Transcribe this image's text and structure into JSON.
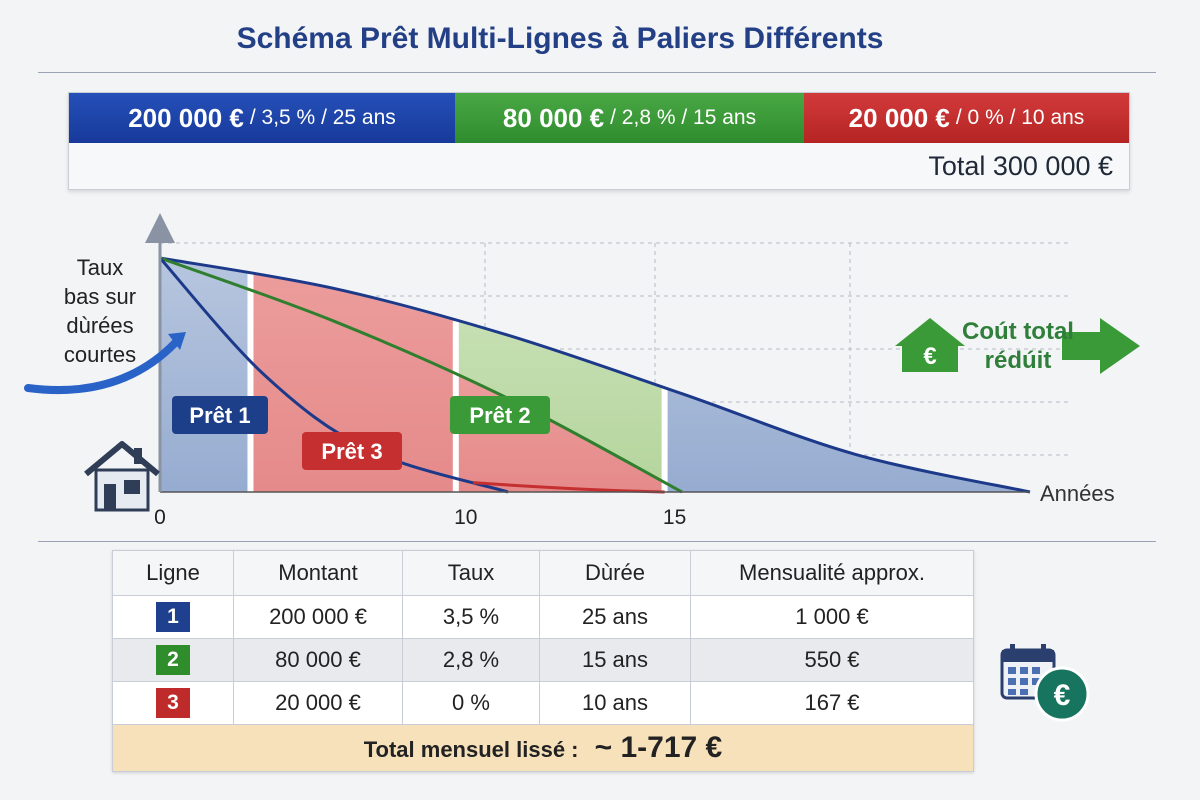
{
  "title": "Schéma Prêt Multi-Lignes à Paliers Différents",
  "colors": {
    "blue": "#1f46a6",
    "green": "#3a9a37",
    "red": "#c52f2f",
    "navy": "#1d3a8a"
  },
  "loans_bar": [
    {
      "amount": "200 000 €",
      "rest": "/ 3,5 % / 25 ans",
      "color": "blue"
    },
    {
      "amount": "80 000 €",
      "rest": "/ 2,8 % / 15 ans",
      "color": "green"
    },
    {
      "amount": "20 000 €",
      "rest": "/ 0 % / 10 ans",
      "color": "red"
    }
  ],
  "total_top": "Total 300 000 €",
  "chart_data": {
    "type": "area",
    "xlabel": "Années",
    "xticks": [
      "0",
      "10",
      "15"
    ],
    "xlim": [
      0,
      25
    ],
    "series": [
      {
        "name": "Prêt 1",
        "duration_years": 25,
        "x": [
          0,
          5,
          10,
          15,
          20,
          25
        ],
        "y": [
          100,
          87,
          67,
          42,
          16,
          0
        ]
      },
      {
        "name": "Prêt 2",
        "duration_years": 15,
        "x": [
          0,
          5,
          10,
          15
        ],
        "y": [
          100,
          73,
          40,
          0
        ]
      },
      {
        "name": "Prêt 3",
        "duration_years": 10,
        "x": [
          0,
          3,
          6,
          10
        ],
        "y": [
          100,
          50,
          18,
          0
        ]
      }
    ],
    "annotations": {
      "left": [
        "Taux",
        "bas sur",
        "dùrées",
        "courtes"
      ],
      "right": [
        "Coút total",
        "rédúit"
      ],
      "euro_symbol": "€"
    }
  },
  "table": {
    "headers": [
      "Ligne",
      "Montant",
      "Taux",
      "Dùrée",
      "Mensualité approx."
    ],
    "rows": [
      {
        "id": "1",
        "color": "#1f3f8f",
        "montant": "200 000 €",
        "taux": "3,5 %",
        "duree": "25 ans",
        "mens": "1 000 €"
      },
      {
        "id": "2",
        "color": "#2f8d2c",
        "montant": "80 000 €",
        "taux": "2,8 %",
        "duree": "15 ans",
        "mens": "550 €"
      },
      {
        "id": "3",
        "color": "#bf2a2a",
        "montant": "20 000 €",
        "taux": "0 %",
        "duree": "10 ans",
        "mens": "167 €"
      }
    ],
    "total_label": "Total mensuel lissé :",
    "total_value": "~ 1-717 €"
  },
  "icons": {
    "house": "house-icon",
    "calendar": "calendar-icon",
    "euro": "euro-coin-icon"
  }
}
